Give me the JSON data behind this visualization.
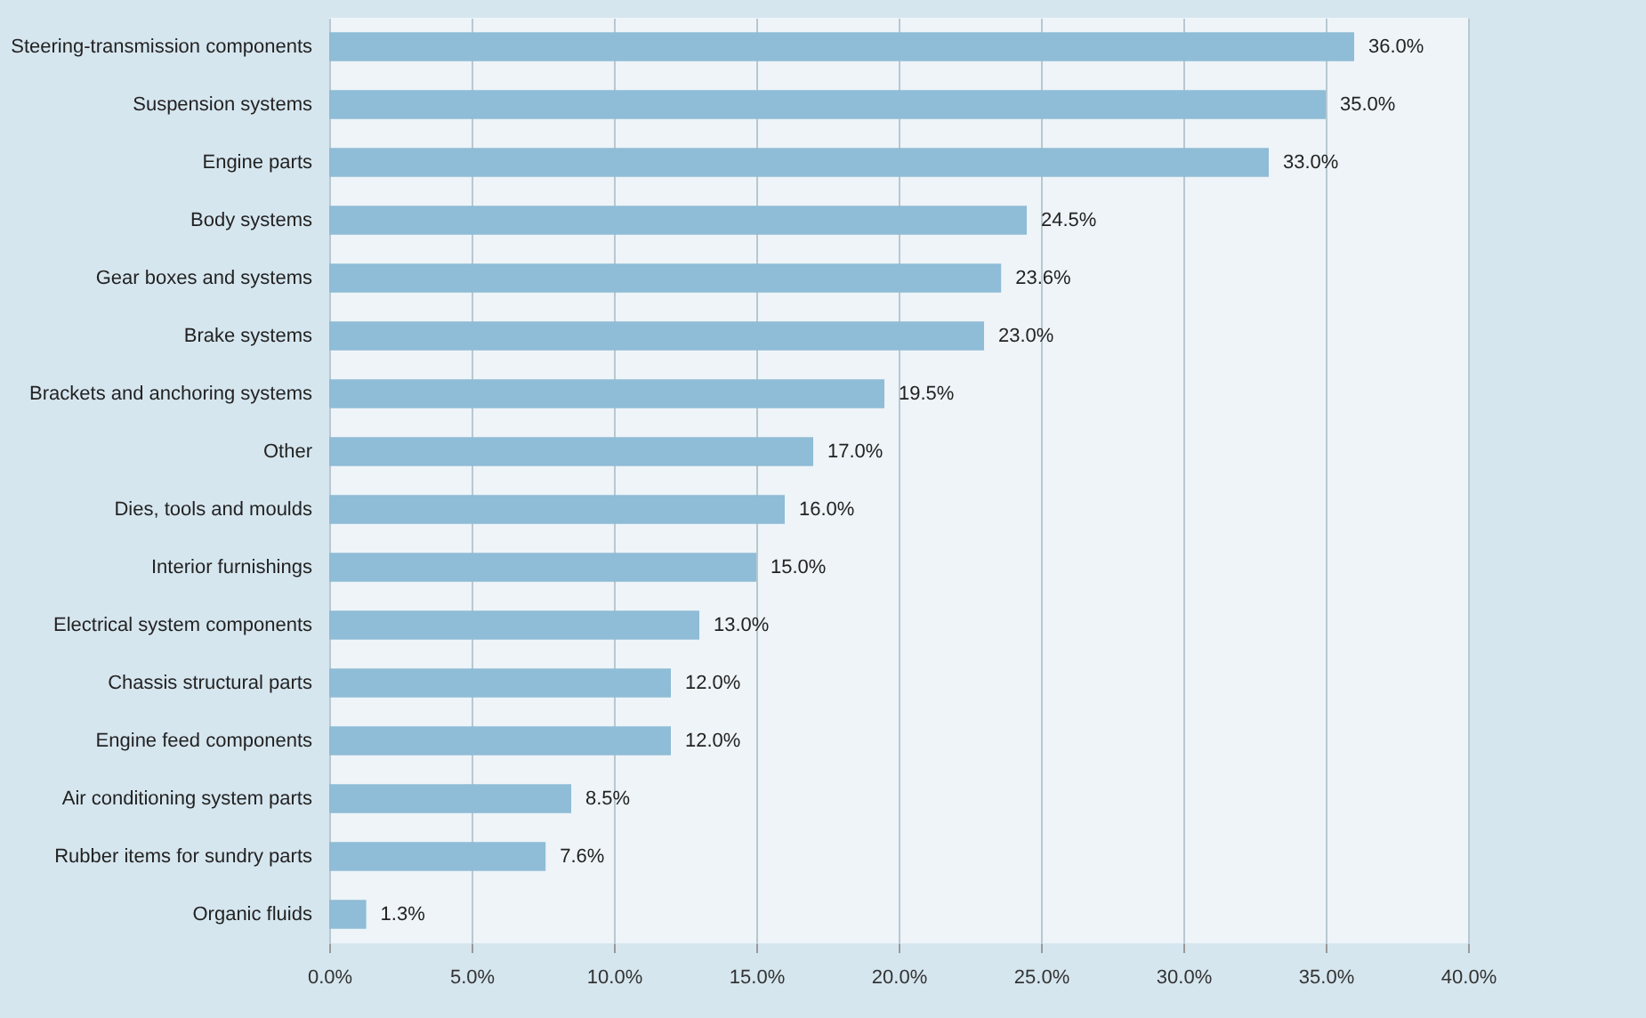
{
  "chart_data": {
    "type": "bar",
    "orientation": "horizontal",
    "categories": [
      "Steering-transmission components",
      "Suspension systems",
      "Engine parts",
      "Body systems",
      "Gear boxes and systems",
      "Brake systems",
      "Brackets and anchoring systems",
      "Other",
      "Dies, tools and moulds",
      "Interior furnishings",
      "Electrical system components",
      "Chassis structural parts",
      "Engine feed components",
      "Air conditioning system parts",
      "Rubber items for sundry parts",
      "Organic fluids"
    ],
    "values": [
      36.0,
      35.0,
      33.0,
      24.5,
      23.6,
      23.0,
      19.5,
      17.0,
      16.0,
      15.0,
      13.0,
      12.0,
      12.0,
      8.5,
      7.6,
      1.3
    ],
    "value_labels": [
      "36.0%",
      "35.0%",
      "33.0%",
      "24.5%",
      "23.6%",
      "23.0%",
      "19.5%",
      "17.0%",
      "16.0%",
      "15.0%",
      "13.0%",
      "12.0%",
      "12.0%",
      "8.5%",
      "7.6%",
      "1.3%"
    ],
    "color": "#8fbcd6",
    "xlim": [
      0,
      40
    ],
    "xticks": [
      {
        "value": 0,
        "label": "0.0%"
      },
      {
        "value": 5,
        "label": "5.0%"
      },
      {
        "value": 10,
        "label": "10.0%"
      },
      {
        "value": 15,
        "label": "15.0%"
      },
      {
        "value": 20,
        "label": "20.0%"
      },
      {
        "value": 25,
        "label": "25.0%"
      },
      {
        "value": 30,
        "label": "30.0%"
      },
      {
        "value": 35,
        "label": "35.0%"
      },
      {
        "value": 40,
        "label": "40.0%"
      }
    ],
    "grid": "x"
  }
}
